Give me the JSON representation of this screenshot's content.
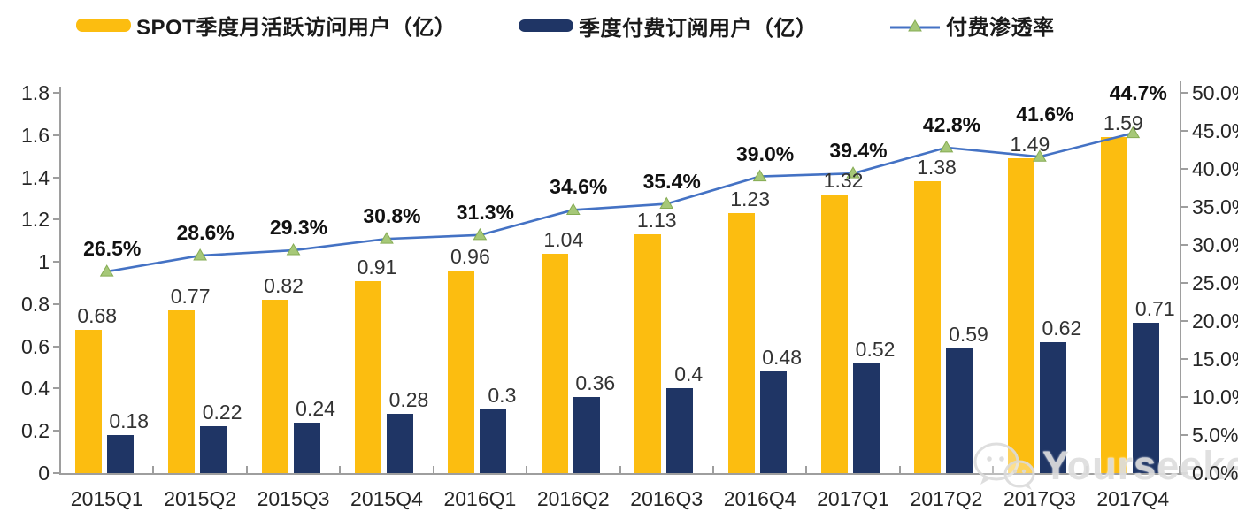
{
  "watermark": {
    "text": "Yourseeker",
    "icon": "wechat-chat-bubbles"
  },
  "chart_data": {
    "type": "combo",
    "legend_position": "top",
    "grid": false,
    "categories": [
      "2015Q1",
      "2015Q2",
      "2015Q3",
      "2015Q4",
      "2016Q1",
      "2016Q2",
      "2016Q3",
      "2016Q4",
      "2017Q1",
      "2017Q2",
      "2017Q3",
      "2017Q4"
    ],
    "series": [
      {
        "name": "SPOT季度月活跃访问用户（亿）",
        "type": "bar",
        "axis": "left",
        "color": "#FCBD10",
        "values": [
          0.68,
          0.77,
          0.82,
          0.91,
          0.96,
          1.04,
          1.13,
          1.23,
          1.32,
          1.38,
          1.49,
          1.59
        ],
        "labels": [
          "0.68",
          "0.77",
          "0.82",
          "0.91",
          "0.96",
          "1.04",
          "1.13",
          "1.23",
          "1.32",
          "1.38",
          "1.49",
          "1.59"
        ]
      },
      {
        "name": "季度付费订阅用户（亿）",
        "type": "bar",
        "axis": "left",
        "color": "#1F3565",
        "values": [
          0.18,
          0.22,
          0.24,
          0.28,
          0.3,
          0.36,
          0.4,
          0.48,
          0.52,
          0.59,
          0.62,
          0.71
        ],
        "labels": [
          "0.18",
          "0.22",
          "0.24",
          "0.28",
          "0.3",
          "0.36",
          "0.4",
          "0.48",
          "0.52",
          "0.59",
          "0.62",
          "0.71"
        ]
      },
      {
        "name": "付费渗透率",
        "type": "line",
        "axis": "right",
        "color": "#4472C4",
        "marker": "triangle",
        "marker_color": "#A6C878",
        "values": [
          26.5,
          28.6,
          29.3,
          30.8,
          31.3,
          34.6,
          35.4,
          39.0,
          39.4,
          42.8,
          41.6,
          44.7
        ],
        "labels": [
          "26.5%",
          "28.6%",
          "29.3%",
          "30.8%",
          "31.3%",
          "34.6%",
          "35.4%",
          "39.0%",
          "39.4%",
          "42.8%",
          "41.6%",
          "44.7%"
        ]
      }
    ],
    "left_axis": {
      "min": 0,
      "max": 1.8,
      "tick_labels": [
        "0",
        "0.2",
        "0.4",
        "0.6",
        "0.8",
        "1",
        "1.2",
        "1.4",
        "1.6",
        "1.8"
      ]
    },
    "right_axis": {
      "min": 0,
      "max": 50,
      "tick_labels": [
        "0.0%",
        "5.0%",
        "10.0%",
        "15.0%",
        "20.0%",
        "25.0%",
        "30.0%",
        "35.0%",
        "40.0%",
        "45.0%",
        "50.0%"
      ]
    }
  }
}
